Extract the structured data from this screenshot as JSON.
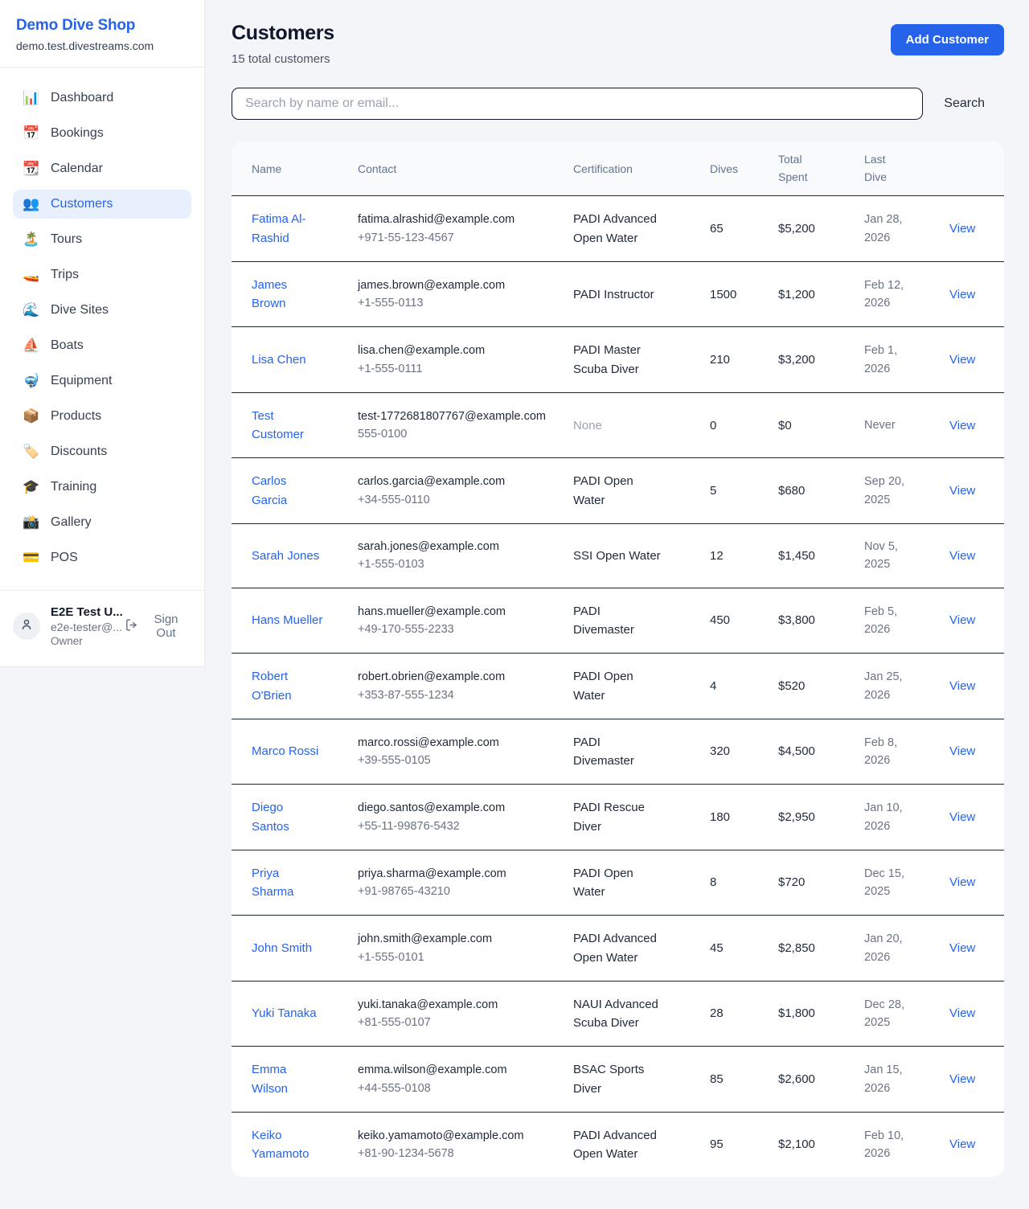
{
  "sidebar": {
    "shop_name": "Demo Dive Shop",
    "shop_domain": "demo.test.divestreams.com",
    "items": [
      {
        "icon": "📊",
        "icon_name": "bar-chart-icon",
        "label": "Dashboard",
        "active": false
      },
      {
        "icon": "📅",
        "icon_name": "calendar-icon",
        "label": "Bookings",
        "active": false
      },
      {
        "icon": "📆",
        "icon_name": "tear-off-calendar-icon",
        "label": "Calendar",
        "active": false
      },
      {
        "icon": "👥",
        "icon_name": "people-icon",
        "label": "Customers",
        "active": true
      },
      {
        "icon": "🏝️",
        "icon_name": "island-icon",
        "label": "Tours",
        "active": false
      },
      {
        "icon": "🚤",
        "icon_name": "speedboat-icon",
        "label": "Trips",
        "active": false
      },
      {
        "icon": "🌊",
        "icon_name": "wave-icon",
        "label": "Dive Sites",
        "active": false
      },
      {
        "icon": "⛵",
        "icon_name": "sailboat-icon",
        "label": "Boats",
        "active": false
      },
      {
        "icon": "🤿",
        "icon_name": "diving-mask-icon",
        "label": "Equipment",
        "active": false
      },
      {
        "icon": "📦",
        "icon_name": "package-icon",
        "label": "Products",
        "active": false
      },
      {
        "icon": "🏷️",
        "icon_name": "label-tag-icon",
        "label": "Discounts",
        "active": false
      },
      {
        "icon": "🎓",
        "icon_name": "graduation-cap-icon",
        "label": "Training",
        "active": false
      },
      {
        "icon": "📸",
        "icon_name": "camera-icon",
        "label": "Gallery",
        "active": false
      },
      {
        "icon": "💳",
        "icon_name": "credit-card-icon",
        "label": "POS",
        "active": false
      }
    ],
    "user": {
      "name": "E2E Test U...",
      "email": "e2e-tester@...",
      "role": "Owner",
      "sign_out_label": "Sign Out"
    }
  },
  "header": {
    "title": "Customers",
    "subtitle": "15 total customers",
    "add_button_label": "Add Customer"
  },
  "search": {
    "placeholder": "Search by name or email...",
    "value": "",
    "button_label": "Search"
  },
  "table": {
    "columns": [
      "Name",
      "Contact",
      "Certification",
      "Dives",
      "Total Spent",
      "Last Dive"
    ],
    "view_label": "View",
    "rows": [
      {
        "name": "Fatima Al-Rashid",
        "email": "fatima.alrashid@example.com",
        "phone": "+971-55-123-4567",
        "certification": "PADI Advanced Open Water",
        "dives": "65",
        "total_spent": "$5,200",
        "last_dive": "Jan 28, 2026"
      },
      {
        "name": "James Brown",
        "email": "james.brown@example.com",
        "phone": "+1-555-0113",
        "certification": "PADI Instructor",
        "dives": "1500",
        "total_spent": "$1,200",
        "last_dive": "Feb 12, 2026"
      },
      {
        "name": "Lisa Chen",
        "email": "lisa.chen@example.com",
        "phone": "+1-555-0111",
        "certification": "PADI Master Scuba Diver",
        "dives": "210",
        "total_spent": "$3,200",
        "last_dive": "Feb 1, 2026"
      },
      {
        "name": "Test Customer",
        "email": "test-1772681807767@example.com",
        "phone": "555-0100",
        "certification": "None",
        "dives": "0",
        "total_spent": "$0",
        "last_dive": "Never"
      },
      {
        "name": "Carlos Garcia",
        "email": "carlos.garcia@example.com",
        "phone": "+34-555-0110",
        "certification": "PADI Open Water",
        "dives": "5",
        "total_spent": "$680",
        "last_dive": "Sep 20, 2025"
      },
      {
        "name": "Sarah Jones",
        "email": "sarah.jones@example.com",
        "phone": "+1-555-0103",
        "certification": "SSI Open Water",
        "dives": "12",
        "total_spent": "$1,450",
        "last_dive": "Nov 5, 2025"
      },
      {
        "name": "Hans Mueller",
        "email": "hans.mueller@example.com",
        "phone": "+49-170-555-2233",
        "certification": "PADI Divemaster",
        "dives": "450",
        "total_spent": "$3,800",
        "last_dive": "Feb 5, 2026"
      },
      {
        "name": "Robert O'Brien",
        "email": "robert.obrien@example.com",
        "phone": "+353-87-555-1234",
        "certification": "PADI Open Water",
        "dives": "4",
        "total_spent": "$520",
        "last_dive": "Jan 25, 2026"
      },
      {
        "name": "Marco Rossi",
        "email": "marco.rossi@example.com",
        "phone": "+39-555-0105",
        "certification": "PADI Divemaster",
        "dives": "320",
        "total_spent": "$4,500",
        "last_dive": "Feb 8, 2026"
      },
      {
        "name": "Diego Santos",
        "email": "diego.santos@example.com",
        "phone": "+55-11-99876-5432",
        "certification": "PADI Rescue Diver",
        "dives": "180",
        "total_spent": "$2,950",
        "last_dive": "Jan 10, 2026"
      },
      {
        "name": "Priya Sharma",
        "email": "priya.sharma@example.com",
        "phone": "+91-98765-43210",
        "certification": "PADI Open Water",
        "dives": "8",
        "total_spent": "$720",
        "last_dive": "Dec 15, 2025"
      },
      {
        "name": "John Smith",
        "email": "john.smith@example.com",
        "phone": "+1-555-0101",
        "certification": "PADI Advanced Open Water",
        "dives": "45",
        "total_spent": "$2,850",
        "last_dive": "Jan 20, 2026"
      },
      {
        "name": "Yuki Tanaka",
        "email": "yuki.tanaka@example.com",
        "phone": "+81-555-0107",
        "certification": "NAUI Advanced Scuba Diver",
        "dives": "28",
        "total_spent": "$1,800",
        "last_dive": "Dec 28, 2025"
      },
      {
        "name": "Emma Wilson",
        "email": "emma.wilson@example.com",
        "phone": "+44-555-0108",
        "certification": "BSAC Sports Diver",
        "dives": "85",
        "total_spent": "$2,600",
        "last_dive": "Jan 15, 2026"
      },
      {
        "name": "Keiko Yamamoto",
        "email": "keiko.yamamoto@example.com",
        "phone": "+81-90-1234-5678",
        "certification": "PADI Advanced Open Water",
        "dives": "95",
        "total_spent": "$2,100",
        "last_dive": "Feb 10, 2026"
      }
    ]
  },
  "colors": {
    "accent": "#2563eb",
    "active_nav_bg": "#e8f0fe",
    "page_bg": "#f3f5f8",
    "table_header_bg": "#f8fafc",
    "row_divider": "#1b2430",
    "muted_text": "#6b7280",
    "dark_text": "#111827"
  }
}
